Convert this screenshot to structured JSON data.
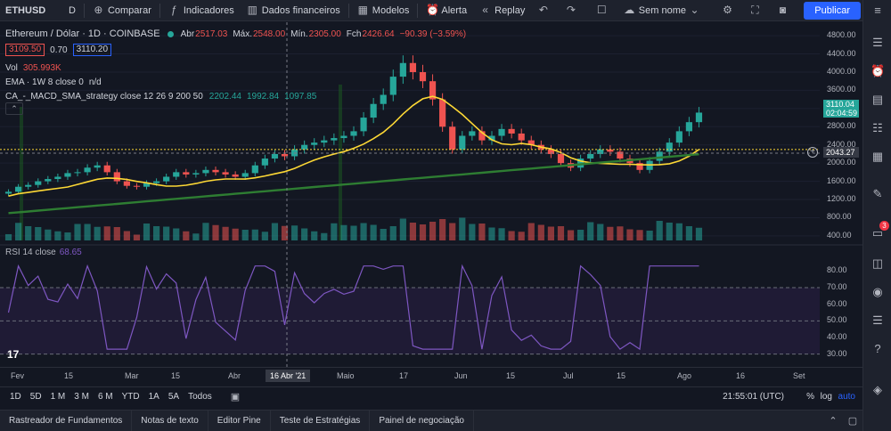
{
  "topbar": {
    "symbol": "ETHUSD",
    "interval": "D",
    "compare": "Comparar",
    "indicators": "Indicadores",
    "financials": "Dados financeiros",
    "templates": "Modelos",
    "alert": "Alerta",
    "replay": "Replay",
    "layout_name": "Sem nome",
    "publish": "Publicar"
  },
  "legend": {
    "title": "Ethereum / Dólar · 1D · COINBASE",
    "open_key": "Abr",
    "open": "2517.03",
    "high_key": "Máx.",
    "high": "2548.00",
    "low_key": "Mín.",
    "low": "2305.00",
    "close_key": "Fch",
    "close": "2426.64",
    "change": "−90.39 (−3.59%)",
    "bid": "3109.50",
    "spread": "0.70",
    "ask": "3110.20",
    "vol_label": "Vol",
    "vol_value": "305.993K",
    "ema_label": "EMA · 1W 8 close 0",
    "ema_value": "n/d",
    "strategy_label": "CA_-_MACD_SMA_strategy close 12 26 9 200 50",
    "strategy_v1": "2202.44",
    "strategy_v2": "1992.84",
    "strategy_v3": "1097.85",
    "rsi_label": "RSI 14 close",
    "rsi_value": "68.65"
  },
  "price_axis": {
    "ticks": [
      "4800.00",
      "4400.00",
      "4000.00",
      "3600.00",
      "3200.00",
      "2800.00",
      "2400.00",
      "2000.00",
      "1600.00",
      "1200.00",
      "800.00",
      "400.00"
    ],
    "last_price": "3110.04",
    "countdown": "02:04:59",
    "crosshair_price": "2043.27"
  },
  "rsi_axis": {
    "ticks": [
      "80.00",
      "70.00",
      "60.00",
      "50.00",
      "40.00",
      "30.00"
    ]
  },
  "time_axis": {
    "labels": [
      "Fev",
      "15",
      "Mar",
      "15",
      "Abr",
      "Maio",
      "17",
      "Jun",
      "15",
      "Jul",
      "15",
      "Ago",
      "16",
      "Set"
    ],
    "crosshair_date": "16 Abr '21"
  },
  "bottombar": {
    "ranges": [
      "1D",
      "5D",
      "1 M",
      "3 M",
      "6 M",
      "YTD",
      "1A",
      "5A",
      "Todos"
    ],
    "clock": "21:55:01 (UTC)",
    "pct": "%",
    "log": "log",
    "auto": "auto"
  },
  "panel_tabs": [
    "Rastreador de Fundamentos",
    "Notas de texto",
    "Editor Pine",
    "Teste de Estratégias",
    "Painel de negociação"
  ],
  "sidebar": {
    "notification_count": "3"
  },
  "chart_data": {
    "type": "candlestick",
    "title": "Ethereum / Dólar · 1D · COINBASE",
    "ylim": [
      300,
      4900
    ],
    "close_approx": [
      1370,
      1480,
      1520,
      1600,
      1650,
      1700,
      1780,
      1800,
      1900,
      1950,
      1800,
      1600,
      1500,
      1480,
      1560,
      1600,
      1700,
      1800,
      1750,
      1780,
      1850,
      1800,
      1750,
      1700,
      1780,
      1950,
      2100,
      2200,
      2150,
      2300,
      2400,
      2450,
      2500,
      2550,
      2600,
      2700,
      3000,
      3300,
      3500,
      3900,
      4200,
      4000,
      3800,
      3400,
      2800,
      2300,
      2600,
      2700,
      2500,
      2600,
      2750,
      2650,
      2500,
      2400,
      2300,
      2200,
      2000,
      1900,
      2100,
      2200,
      2300,
      2250,
      2100,
      2000,
      1850,
      2050,
      2250,
      2450,
      2700,
      2900,
      3110
    ],
    "rsi_ylim": [
      25,
      85
    ],
    "rsi_levels": [
      70,
      30
    ]
  }
}
